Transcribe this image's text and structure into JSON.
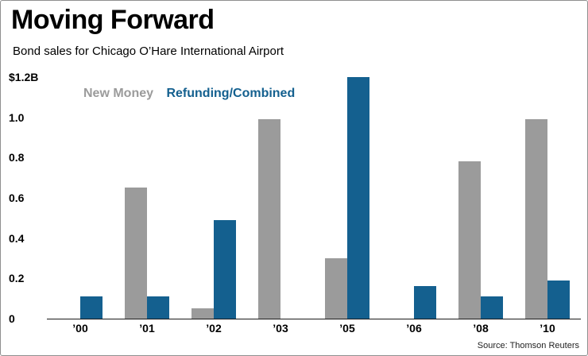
{
  "header": {
    "title": "Moving Forward",
    "subtitle": "Bond sales for Chicago O’Hare International Airport"
  },
  "legend": [
    {
      "label": "New Money",
      "color": "#9b9b9b"
    },
    {
      "label": "Refunding/Combined",
      "color": "#14608f"
    }
  ],
  "source": "Source: Thomson Reuters",
  "chart_data": {
    "type": "bar",
    "categories": [
      "’00",
      "’01",
      "’02",
      "’03",
      "’05",
      "’06",
      "’08",
      "’10"
    ],
    "series": [
      {
        "name": "New Money",
        "color": "#9b9b9b",
        "values": [
          0,
          0.65,
          0.05,
          0.99,
          0.3,
          0,
          0.78,
          0.99
        ]
      },
      {
        "name": "Refunding/Combined",
        "color": "#14608f",
        "values": [
          0.11,
          0.11,
          0.49,
          0,
          1.2,
          0.16,
          0.11,
          0.19
        ]
      }
    ],
    "title": "Moving Forward",
    "xlabel": "",
    "ylabel": "",
    "ylim": [
      0,
      1.2
    ],
    "ytick_labels": [
      "$1.2B",
      "1.0",
      "0.8",
      "0.6",
      "0.4",
      "0.2",
      "0"
    ],
    "grid": false,
    "legend_position": "top-left-inside"
  }
}
